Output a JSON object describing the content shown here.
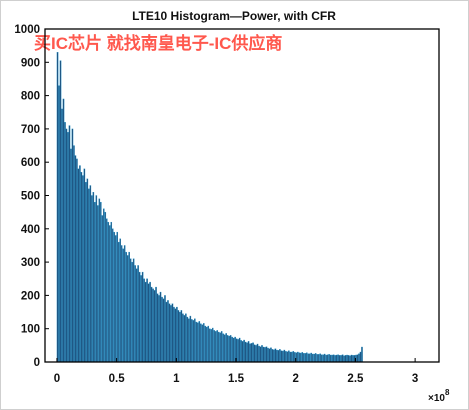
{
  "chart_data": {
    "type": "bar",
    "title": "LTE10 Histogram—Power, with CFR",
    "xlabel": "",
    "ylabel": "",
    "x_scale_label": "×10",
    "x_scale_exponent": "8",
    "xlim": [
      -0.1,
      3.2
    ],
    "ylim": [
      0,
      1000
    ],
    "xticks": [
      0,
      0.5,
      1,
      1.5,
      2,
      2.5,
      3
    ],
    "xtick_labels": [
      "0",
      "0.5",
      "1",
      "1.5",
      "2",
      "2.5",
      "3"
    ],
    "yticks": [
      0,
      100,
      200,
      300,
      400,
      500,
      600,
      700,
      800,
      900,
      1000
    ],
    "ytick_labels": [
      "0",
      "100",
      "200",
      "300",
      "400",
      "500",
      "600",
      "700",
      "800",
      "900",
      "1000"
    ],
    "grid": false,
    "bar_color": "#1f4e79",
    "bin_start": 0.0,
    "bin_width": 0.0125,
    "values": [
      930,
      830,
      905,
      760,
      790,
      720,
      700,
      690,
      710,
      640,
      700,
      650,
      620,
      610,
      580,
      590,
      570,
      560,
      580,
      540,
      550,
      520,
      530,
      500,
      510,
      480,
      500,
      470,
      490,
      480,
      440,
      460,
      450,
      430,
      420,
      410,
      420,
      400,
      390,
      380,
      390,
      360,
      370,
      350,
      340,
      350,
      330,
      320,
      330,
      310,
      300,
      310,
      290,
      280,
      290,
      270,
      260,
      270,
      250,
      240,
      250,
      235,
      240,
      225,
      220,
      215,
      225,
      205,
      200,
      210,
      195,
      190,
      200,
      180,
      185,
      175,
      170,
      175,
      165,
      160,
      165,
      155,
      150,
      155,
      145,
      140,
      145,
      135,
      130,
      138,
      128,
      125,
      130,
      120,
      118,
      122,
      115,
      112,
      116,
      108,
      105,
      108,
      100,
      98,
      102,
      95,
      92,
      95,
      90,
      88,
      92,
      85,
      82,
      86,
      80,
      78,
      80,
      75,
      72,
      75,
      70,
      68,
      72,
      65,
      62,
      66,
      60,
      58,
      62,
      55,
      56,
      58,
      52,
      50,
      54,
      48,
      46,
      50,
      45,
      44,
      46,
      42,
      40,
      43,
      38,
      37,
      40,
      36,
      35,
      38,
      34,
      33,
      36,
      32,
      31,
      34,
      30,
      30,
      32,
      29,
      28,
      30,
      28,
      27,
      29,
      26,
      26,
      28,
      25,
      25,
      27,
      24,
      24,
      26,
      23,
      23,
      25,
      22,
      22,
      24,
      21,
      22,
      23,
      21,
      21,
      22,
      20,
      21,
      22,
      20,
      20,
      22,
      19,
      20,
      21,
      20,
      19,
      21,
      20,
      20,
      21,
      22,
      25,
      30,
      45
    ]
  },
  "watermark": "买IC芯片 就找南皇电子-IC供应商"
}
